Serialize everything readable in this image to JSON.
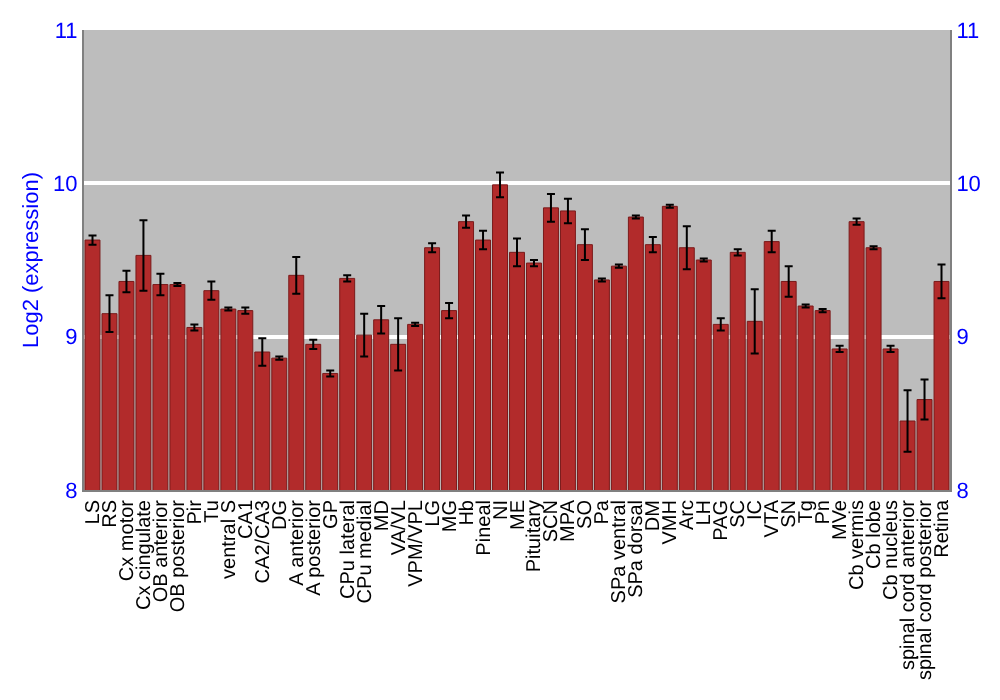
{
  "chart_data": {
    "type": "bar",
    "ylabel": "Log2 (expression)",
    "categories": [
      "LS",
      "RS",
      "Cx motor",
      "Cx cingulate",
      "OB anterior",
      "OB posterior",
      "Pir",
      "Tu",
      "ventral S",
      "CA1",
      "CA2/CA3",
      "DG",
      "A anterior",
      "A posterior",
      "GP",
      "CPu lateral",
      "CPu medial",
      "MD",
      "VA/VL",
      "VPM/VPL",
      "LG",
      "MG",
      "Hb",
      "Pineal",
      "NI",
      "ME",
      "Pituitary",
      "SCN",
      "MPA",
      "SO",
      "Pa",
      "SPa ventral",
      "SPa dorsal",
      "DM",
      "VMH",
      "Arc",
      "LH",
      "PAG",
      "SC",
      "IC",
      "VTA",
      "SN",
      "Tg",
      "Pn",
      "MVe",
      "Cb vermis",
      "Cb lobe",
      "Cb nucleus",
      "spinal cord anterior",
      "spinal cord posterior",
      "Retina"
    ],
    "values": [
      9.63,
      9.15,
      9.36,
      9.53,
      9.34,
      9.34,
      9.06,
      9.3,
      9.18,
      9.17,
      8.9,
      8.86,
      9.4,
      8.95,
      8.76,
      9.38,
      9.01,
      9.11,
      8.95,
      9.08,
      9.58,
      9.17,
      9.75,
      9.63,
      9.99,
      9.55,
      9.48,
      9.84,
      9.82,
      9.6,
      9.37,
      9.46,
      9.78,
      9.6,
      9.85,
      9.58,
      9.5,
      9.08,
      9.55,
      9.1,
      9.62,
      9.36,
      9.2,
      9.17,
      8.92,
      9.75,
      9.58,
      8.92,
      8.45,
      8.59,
      9.36
    ],
    "errors": [
      0.03,
      0.12,
      0.07,
      0.23,
      0.07,
      0.01,
      0.02,
      0.06,
      0.01,
      0.02,
      0.09,
      0.01,
      0.12,
      0.03,
      0.02,
      0.02,
      0.14,
      0.09,
      0.17,
      0.01,
      0.03,
      0.05,
      0.04,
      0.06,
      0.08,
      0.09,
      0.02,
      0.09,
      0.08,
      0.1,
      0.01,
      0.01,
      0.01,
      0.05,
      0.01,
      0.14,
      0.01,
      0.04,
      0.02,
      0.21,
      0.07,
      0.1,
      0.01,
      0.01,
      0.02,
      0.02,
      0.01,
      0.02,
      0.2,
      0.13,
      0.11
    ],
    "color": "#b22b2b",
    "ylim": [
      8,
      11
    ],
    "yticks": [
      8,
      9,
      10,
      11
    ],
    "y2lim": [
      8,
      11
    ],
    "y2ticks": [
      8,
      9,
      10,
      11
    ],
    "grid": "y"
  }
}
